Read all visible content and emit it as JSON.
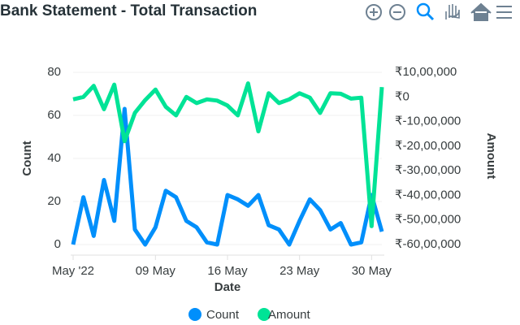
{
  "chart_data": {
    "type": "line",
    "title": "Bank Statement - Total Transaction",
    "xlabel": "Date",
    "ylabel": "Count",
    "y2label": "Amount",
    "x": [
      "2022-05-01",
      "2022-05-02",
      "2022-05-03",
      "2022-05-04",
      "2022-05-05",
      "2022-05-06",
      "2022-05-07",
      "2022-05-08",
      "2022-05-09",
      "2022-05-10",
      "2022-05-11",
      "2022-05-12",
      "2022-05-13",
      "2022-05-14",
      "2022-05-15",
      "2022-05-16",
      "2022-05-17",
      "2022-05-18",
      "2022-05-19",
      "2022-05-20",
      "2022-05-21",
      "2022-05-22",
      "2022-05-23",
      "2022-05-24",
      "2022-05-25",
      "2022-05-26",
      "2022-05-27",
      "2022-05-28",
      "2022-05-29",
      "2022-05-30",
      "2022-05-31"
    ],
    "xlim": [
      "2022-05-01",
      "2022-05-31"
    ],
    "xticks": [
      {
        "value": "2022-05-01",
        "label": "May '22"
      },
      {
        "value": "2022-05-09",
        "label": "09 May"
      },
      {
        "value": "2022-05-16",
        "label": "16 May"
      },
      {
        "value": "2022-05-23",
        "label": "23 May"
      },
      {
        "value": "2022-05-30",
        "label": "30 May"
      }
    ],
    "ylim": [
      0,
      80
    ],
    "yticks": [
      0,
      20,
      40,
      60,
      80
    ],
    "y2lim": [
      -6000000,
      1000000
    ],
    "y2ticks": [
      {
        "value": 1000000,
        "label": "₹10,00,000"
      },
      {
        "value": 0,
        "label": "₹0"
      },
      {
        "value": -1000000,
        "label": "₹-10,00,000"
      },
      {
        "value": -2000000,
        "label": "₹-20,00,000"
      },
      {
        "value": -3000000,
        "label": "₹-30,00,000"
      },
      {
        "value": -4000000,
        "label": "₹-40,00,000"
      },
      {
        "value": -5000000,
        "label": "₹-50,00,000"
      },
      {
        "value": -6000000,
        "label": "₹-60,00,000"
      }
    ],
    "grid": true,
    "legend": "bottom",
    "series": [
      {
        "name": "Count",
        "color": "#008ffb",
        "values": [
          0,
          22,
          4,
          30,
          11,
          63,
          7,
          0,
          8,
          25,
          22,
          11,
          8,
          1,
          0,
          23,
          21,
          18,
          23,
          9,
          7,
          0,
          11,
          21,
          16,
          7,
          10,
          0,
          1,
          23,
          6
        ]
      },
      {
        "name": "Amount",
        "color": "#00e396",
        "axis": "y2",
        "values": [
          -100000,
          0,
          450000,
          -500000,
          500000,
          -1800000,
          -650000,
          -130000,
          300000,
          -400000,
          -750000,
          0,
          -250000,
          -100000,
          -150000,
          -350000,
          -750000,
          550000,
          -1400000,
          150000,
          -250000,
          -100000,
          150000,
          -30000,
          -650000,
          150000,
          130000,
          -70000,
          -30000,
          -5250000,
          400000
        ]
      }
    ]
  }
}
